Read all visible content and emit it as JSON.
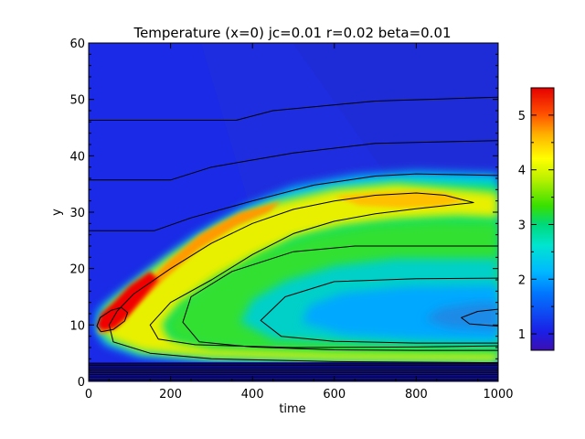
{
  "chart_data": {
    "type": "heatmap",
    "title": "Temperature (x=0) jc=0.01 r=0.02 beta=0.01",
    "xlabel": "time",
    "ylabel": "y",
    "xlim": [
      0,
      1000
    ],
    "ylim": [
      0,
      60
    ],
    "x_ticks": [
      0,
      200,
      400,
      600,
      800,
      1000
    ],
    "y_ticks": [
      0,
      10,
      20,
      30,
      40,
      50,
      60
    ],
    "colorbar": {
      "range": [
        0.7,
        5.5
      ],
      "ticks": [
        1,
        2,
        3,
        4,
        5
      ],
      "colormap": "rainbow"
    },
    "features": [
      {
        "label": "hot peak near origin",
        "time": 50,
        "y": 10.5,
        "value": 5.4
      },
      {
        "label": "warm band upper ridge",
        "time": 800,
        "y": 32,
        "value": 4.1
      },
      {
        "label": "cool core",
        "time": 900,
        "y": 12,
        "value": 1.4
      },
      {
        "label": "background",
        "time": 500,
        "y": 50,
        "value": 0.8
      }
    ],
    "contours": [
      {
        "level": "c1",
        "points": [
          [
            0,
            46.3
          ],
          [
            360,
            46.3
          ],
          [
            450,
            48
          ],
          [
            700,
            49.7
          ],
          [
            1000,
            50.4
          ]
        ]
      },
      {
        "level": "c2",
        "points": [
          [
            0,
            35.7
          ],
          [
            200,
            35.7
          ],
          [
            300,
            38
          ],
          [
            500,
            40.5
          ],
          [
            700,
            42.2
          ],
          [
            1000,
            42.7
          ]
        ]
      },
      {
        "level": "c3",
        "points": [
          [
            0,
            26.7
          ],
          [
            160,
            26.7
          ],
          [
            250,
            29
          ],
          [
            400,
            32
          ],
          [
            550,
            34.8
          ],
          [
            700,
            36.4
          ],
          [
            800,
            36.8
          ],
          [
            1000,
            36.5
          ]
        ]
      },
      {
        "level": "c4",
        "points": [
          [
            30,
            8.8
          ],
          [
            20,
            9.8
          ],
          [
            28,
            11.3
          ],
          [
            55,
            12.6
          ],
          [
            80,
            13.1
          ],
          [
            95,
            12.2
          ],
          [
            88,
            10.7
          ],
          [
            60,
            9.2
          ],
          [
            30,
            8.8
          ]
        ]
      },
      {
        "level": "c5",
        "points": [
          [
            1000,
            3.3
          ],
          [
            600,
            3.5
          ],
          [
            300,
            4
          ],
          [
            150,
            5
          ],
          [
            60,
            7
          ],
          [
            50,
            10
          ],
          [
            70,
            12.5
          ],
          [
            110,
            15.5
          ],
          [
            200,
            20
          ],
          [
            300,
            24.5
          ],
          [
            400,
            28
          ],
          [
            500,
            30.5
          ],
          [
            600,
            32
          ],
          [
            700,
            33
          ],
          [
            800,
            33.4
          ],
          [
            870,
            33
          ],
          [
            940,
            31.7
          ],
          [
            900,
            31.4
          ],
          [
            800,
            30.6
          ],
          [
            700,
            29.7
          ],
          [
            600,
            28.4
          ],
          [
            500,
            26.2
          ],
          [
            400,
            22.5
          ],
          [
            300,
            18
          ],
          [
            200,
            14
          ],
          [
            150,
            10
          ],
          [
            170,
            7.5
          ],
          [
            260,
            6.5
          ],
          [
            500,
            6
          ],
          [
            800,
            6.1
          ],
          [
            1000,
            6.3
          ]
        ]
      },
      {
        "level": "c6",
        "points": [
          [
            1000,
            24
          ],
          [
            800,
            24
          ],
          [
            650,
            24
          ],
          [
            500,
            23
          ],
          [
            350,
            19.5
          ],
          [
            250,
            15
          ],
          [
            230,
            10.5
          ],
          [
            270,
            7
          ],
          [
            400,
            6.1
          ],
          [
            600,
            5.6
          ],
          [
            800,
            5.5
          ],
          [
            1000,
            5.5
          ]
        ]
      },
      {
        "level": "c7",
        "points": [
          [
            1000,
            18.3
          ],
          [
            800,
            18.2
          ],
          [
            600,
            17.7
          ],
          [
            480,
            15
          ],
          [
            420,
            10.8
          ],
          [
            470,
            8
          ],
          [
            600,
            7.1
          ],
          [
            800,
            6.8
          ],
          [
            1000,
            6.8
          ]
        ]
      },
      {
        "level": "c8",
        "points": [
          [
            1000,
            12.8
          ],
          [
            950,
            12.4
          ],
          [
            910,
            11.3
          ],
          [
            930,
            10.2
          ],
          [
            1000,
            9.8
          ]
        ]
      }
    ],
    "bottom_band_lines": [
      0.3,
      0.8,
      1.2,
      1.6,
      2.0,
      2.4,
      2.8,
      3.1
    ]
  }
}
